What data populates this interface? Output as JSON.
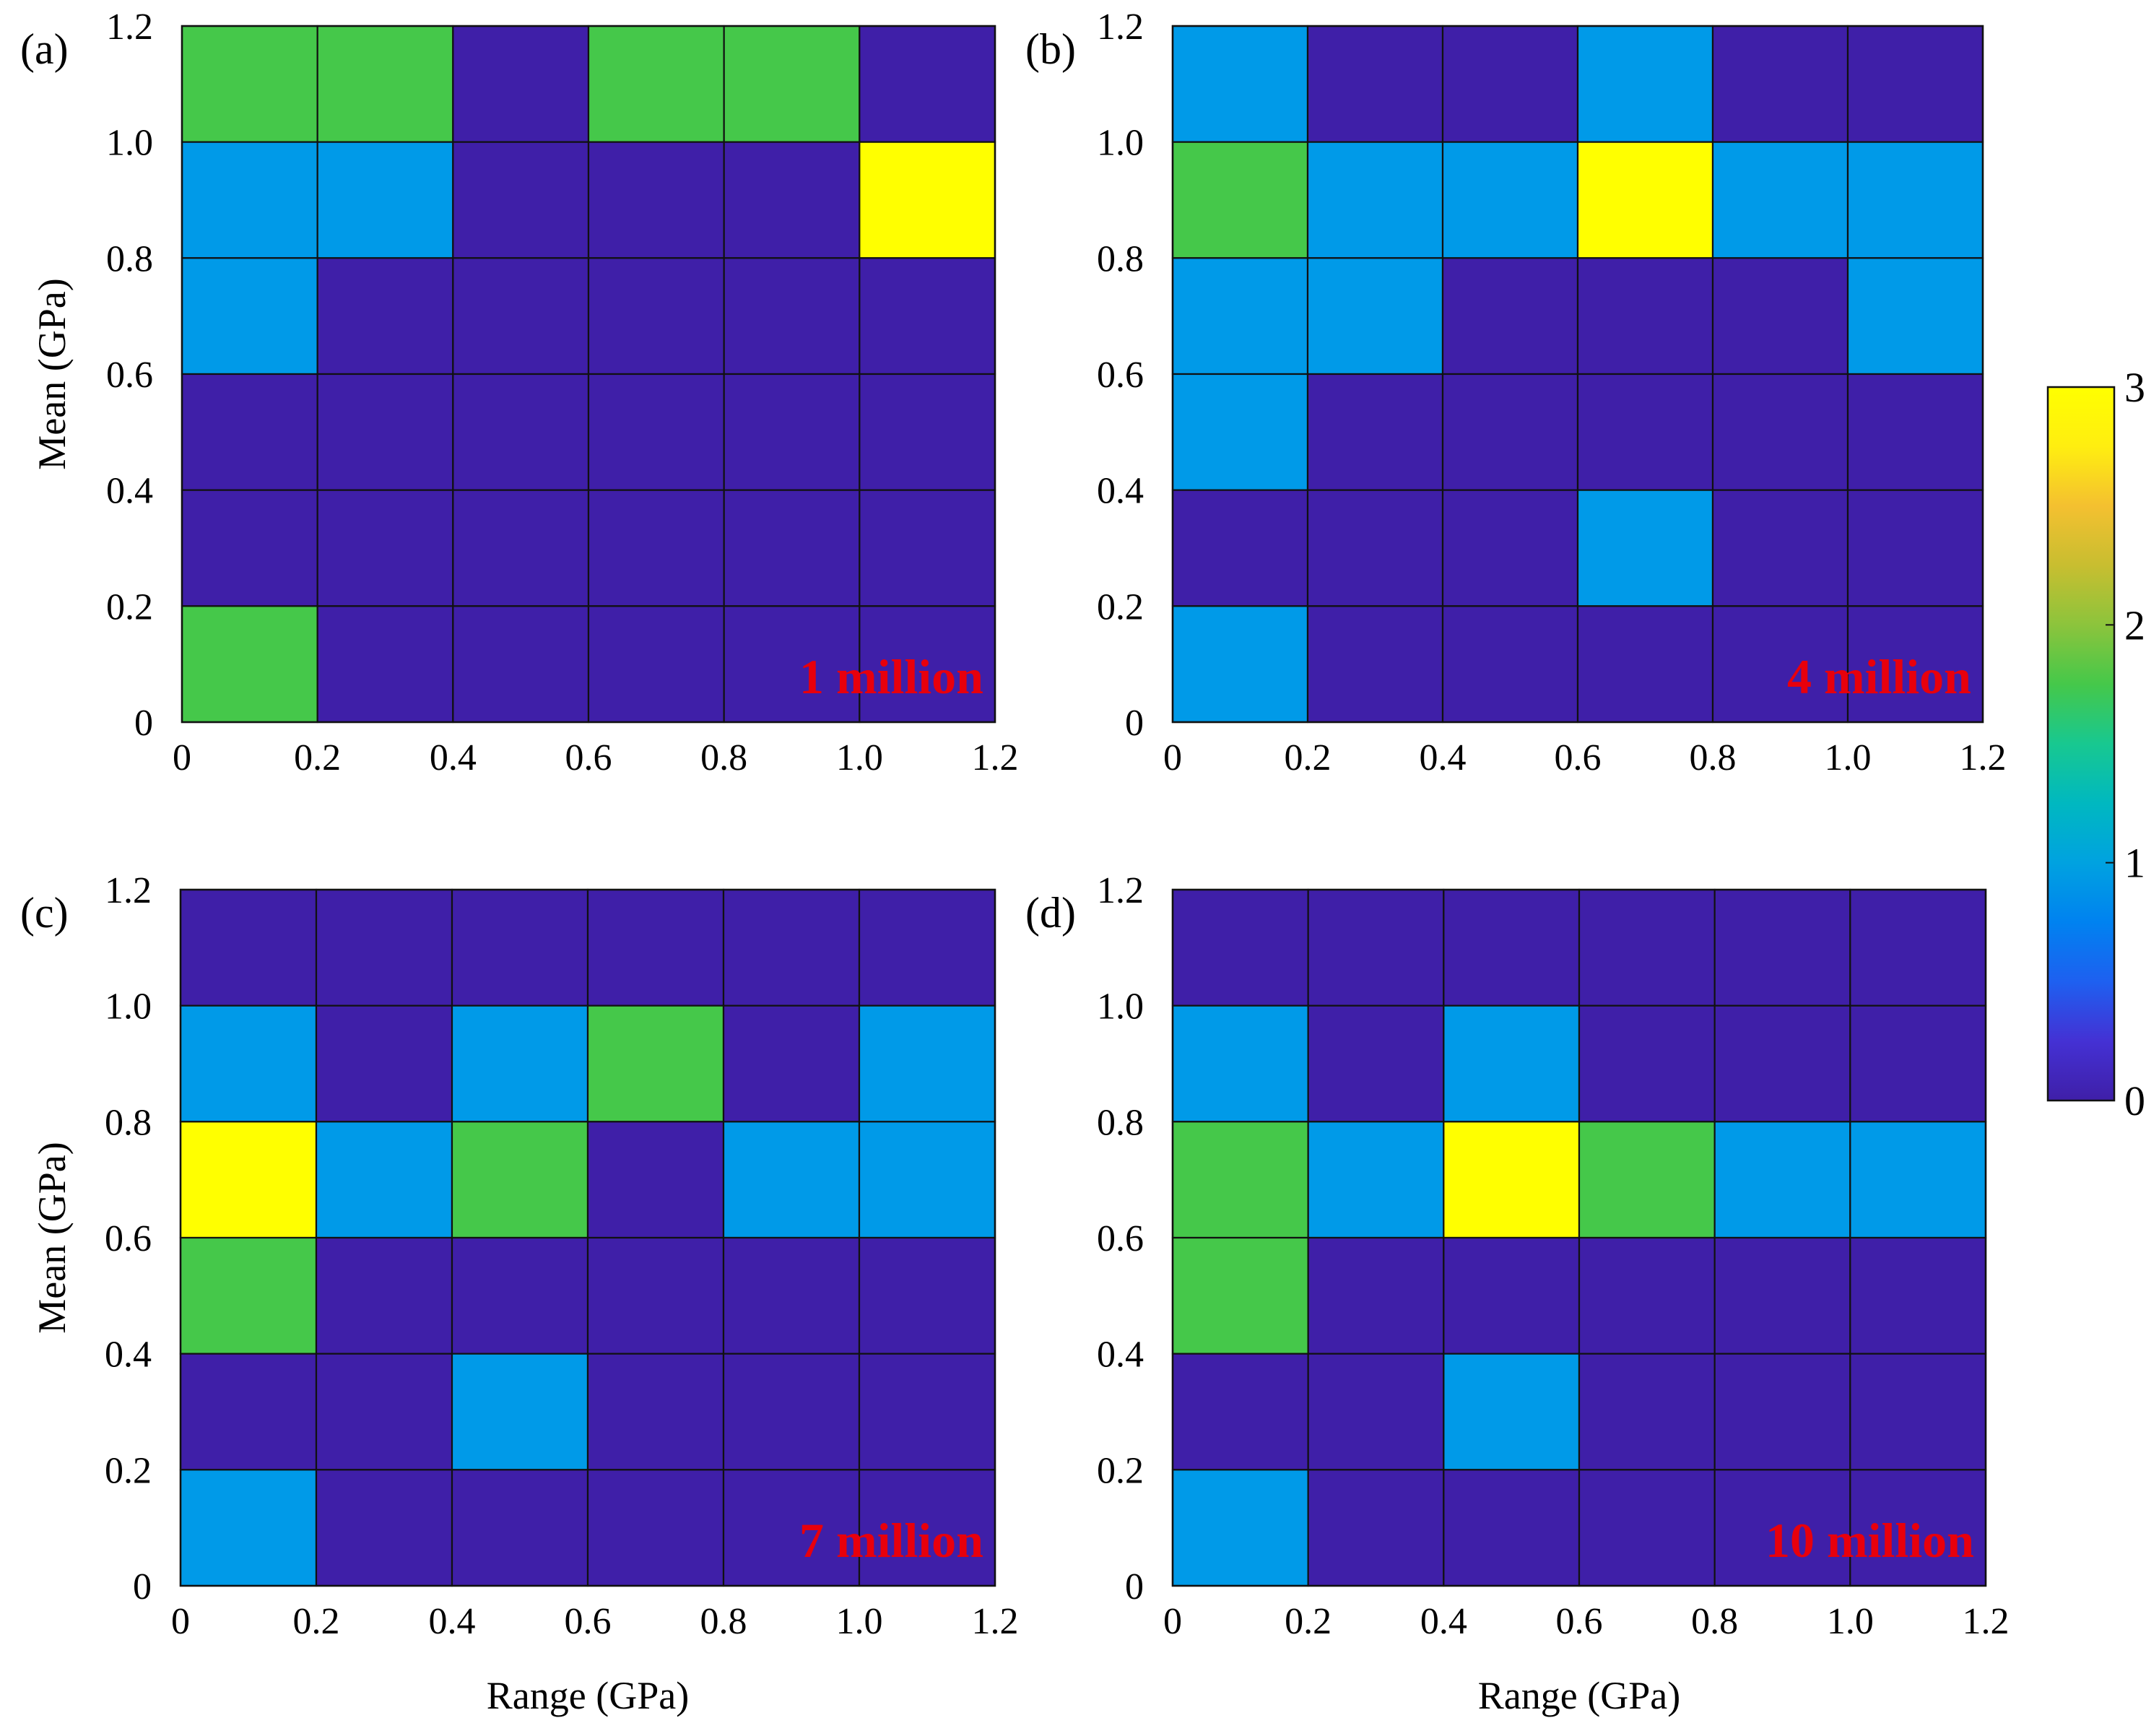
{
  "chart_data": [
    {
      "type": "heatmap",
      "panel_label": "(a)",
      "annotation": "1 million",
      "xlabel": "",
      "ylabel": "Mean (GPa)",
      "x_ticks": [
        "0",
        "0.2",
        "0.4",
        "0.6",
        "0.8",
        "1.0",
        "1.2"
      ],
      "y_ticks": [
        "0",
        "0.2",
        "0.4",
        "0.6",
        "0.8",
        "1.0",
        "1.2"
      ],
      "xlim": [
        0,
        1.2
      ],
      "ylim": [
        0,
        1.2
      ],
      "bin_edges": [
        0,
        0.2,
        0.4,
        0.6,
        0.8,
        1.0,
        1.2
      ],
      "rows_top_to_bottom": [
        [
          2,
          2,
          0,
          2,
          2,
          0
        ],
        [
          1,
          1,
          0,
          0,
          0,
          3
        ],
        [
          1,
          0,
          0,
          0,
          0,
          0
        ],
        [
          0,
          0,
          0,
          0,
          0,
          0
        ],
        [
          0,
          0,
          0,
          0,
          0,
          0
        ],
        [
          2,
          0,
          0,
          0,
          0,
          0
        ]
      ]
    },
    {
      "type": "heatmap",
      "panel_label": "(b)",
      "annotation": "4 million",
      "xlabel": "",
      "ylabel": "",
      "x_ticks": [
        "0",
        "0.2",
        "0.4",
        "0.6",
        "0.8",
        "1.0",
        "1.2"
      ],
      "y_ticks": [
        "0",
        "0.2",
        "0.4",
        "0.6",
        "0.8",
        "1.0",
        "1.2"
      ],
      "xlim": [
        0,
        1.2
      ],
      "ylim": [
        0,
        1.2
      ],
      "bin_edges": [
        0,
        0.2,
        0.4,
        0.6,
        0.8,
        1.0,
        1.2
      ],
      "rows_top_to_bottom": [
        [
          1,
          0,
          0,
          1,
          0,
          0
        ],
        [
          2,
          1,
          1,
          3,
          1,
          1
        ],
        [
          1,
          1,
          0,
          0,
          0,
          1
        ],
        [
          1,
          0,
          0,
          0,
          0,
          0
        ],
        [
          0,
          0,
          0,
          1,
          0,
          0
        ],
        [
          1,
          0,
          0,
          0,
          0,
          0
        ]
      ]
    },
    {
      "type": "heatmap",
      "panel_label": "(c)",
      "annotation": "7 million",
      "xlabel": "Range (GPa)",
      "ylabel": "Mean (GPa)",
      "x_ticks": [
        "0",
        "0.2",
        "0.4",
        "0.6",
        "0.8",
        "1.0",
        "1.2"
      ],
      "y_ticks": [
        "0",
        "0.2",
        "0.4",
        "0.6",
        "0.8",
        "1.0",
        "1.2"
      ],
      "xlim": [
        0,
        1.2
      ],
      "ylim": [
        0,
        1.2
      ],
      "bin_edges": [
        0,
        0.2,
        0.4,
        0.6,
        0.8,
        1.0,
        1.2
      ],
      "rows_top_to_bottom": [
        [
          0,
          0,
          0,
          0,
          0,
          0
        ],
        [
          1,
          0,
          1,
          2,
          0,
          1
        ],
        [
          3,
          1,
          2,
          0,
          1,
          1
        ],
        [
          2,
          0,
          0,
          0,
          0,
          0
        ],
        [
          0,
          0,
          1,
          0,
          0,
          0
        ],
        [
          1,
          0,
          0,
          0,
          0,
          0
        ]
      ]
    },
    {
      "type": "heatmap",
      "panel_label": "(d)",
      "annotation": "10 million",
      "xlabel": "Range (GPa)",
      "ylabel": "",
      "x_ticks": [
        "0",
        "0.2",
        "0.4",
        "0.6",
        "0.8",
        "1.0",
        "1.2"
      ],
      "y_ticks": [
        "0",
        "0.2",
        "0.4",
        "0.6",
        "0.8",
        "1.0",
        "1.2"
      ],
      "xlim": [
        0,
        1.2
      ],
      "ylim": [
        0,
        1.2
      ],
      "bin_edges": [
        0,
        0.2,
        0.4,
        0.6,
        0.8,
        1.0,
        1.2
      ],
      "rows_top_to_bottom": [
        [
          0,
          0,
          0,
          0,
          0,
          0
        ],
        [
          1,
          0,
          1,
          0,
          0,
          0
        ],
        [
          2,
          1,
          3,
          2,
          1,
          1
        ],
        [
          2,
          0,
          0,
          0,
          0,
          0
        ],
        [
          0,
          0,
          1,
          0,
          0,
          0
        ],
        [
          1,
          0,
          0,
          0,
          0,
          0
        ]
      ]
    }
  ],
  "colorbar": {
    "range": [
      0,
      3
    ],
    "ticks": [
      "0",
      "1",
      "2",
      "3"
    ],
    "colors": [
      "#3F1FA8",
      "#009AE8",
      "#45C84A",
      "#FFFF00"
    ],
    "gradient": [
      "#3F1FA8",
      "#4431D4",
      "#1E60F0",
      "#0082F0",
      "#00A2E0",
      "#00B8C0",
      "#18C890",
      "#45C84A",
      "#8CC43C",
      "#C8BE30",
      "#F4C030",
      "#FFEE10",
      "#FFFF00"
    ]
  },
  "annotation_color": "#E8000C"
}
